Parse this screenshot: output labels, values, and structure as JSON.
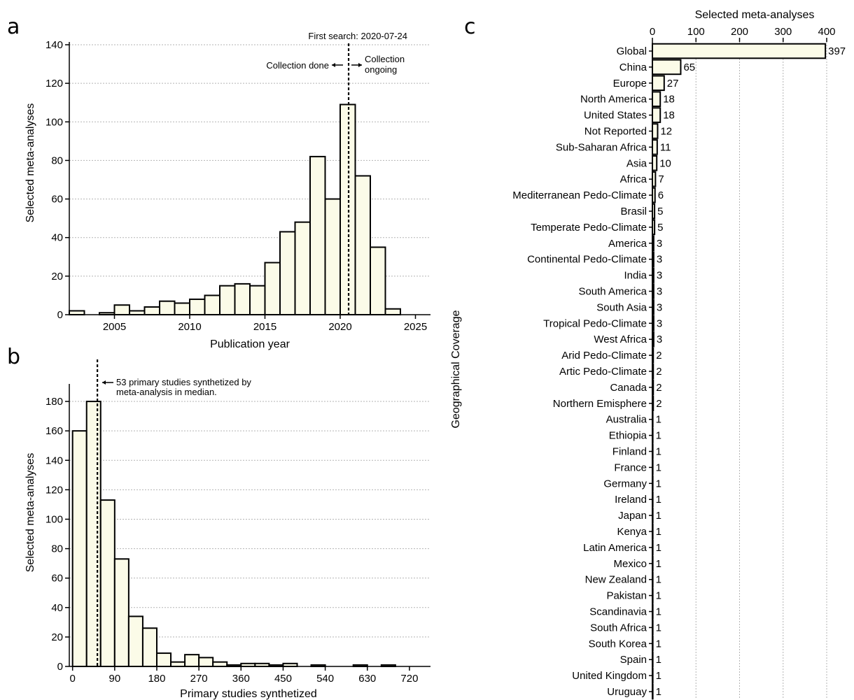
{
  "chart_data": [
    {
      "panel": "a",
      "type": "bar",
      "xlabel": "Publication year",
      "ylabel": "Selected meta-analyses",
      "xlim": [
        2002,
        2026
      ],
      "ylim": [
        0,
        140
      ],
      "xticks": [
        2005,
        2010,
        2015,
        2020,
        2025
      ],
      "yticks": [
        0,
        20,
        40,
        60,
        80,
        100,
        120,
        140
      ],
      "grid": "horizontal dotted",
      "bin_width": 1,
      "x": [
        2002.5,
        2003.5,
        2004.5,
        2005.5,
        2006.5,
        2007.5,
        2008.5,
        2009.5,
        2010.5,
        2011.5,
        2012.5,
        2013.5,
        2014.5,
        2015.5,
        2016.5,
        2017.5,
        2018.5,
        2019.5,
        2020.5,
        2021.5,
        2022.5,
        2023.5
      ],
      "values": [
        2,
        0,
        1,
        5,
        2,
        4,
        7,
        6,
        8,
        10,
        15,
        16,
        15,
        27,
        43,
        48,
        82,
        60,
        109,
        72,
        35,
        3
      ],
      "reference_line": {
        "x": 2020.56,
        "label": "First search: 2020-07-24"
      },
      "annotations": {
        "left": "Collection done",
        "right_line1": "Collection",
        "right_line2": "ongoing"
      }
    },
    {
      "panel": "b",
      "type": "bar",
      "xlabel": "Primary studies synthetized",
      "ylabel": "Selected meta-analyses",
      "xlim": [
        -7,
        765
      ],
      "ylim": [
        0,
        190
      ],
      "xticks": [
        0,
        90,
        180,
        270,
        360,
        450,
        540,
        630,
        720
      ],
      "yticks": [
        0,
        20,
        40,
        60,
        80,
        100,
        120,
        140,
        160,
        180
      ],
      "grid": "horizontal dotted",
      "bin_width": 30,
      "x": [
        15,
        45,
        75,
        105,
        135,
        165,
        195,
        225,
        255,
        285,
        315,
        345,
        375,
        405,
        435,
        465,
        495,
        525,
        555,
        585,
        615,
        645,
        675,
        705,
        735
      ],
      "values": [
        160,
        180,
        113,
        73,
        34,
        26,
        9,
        3,
        8,
        6,
        3,
        1,
        2,
        2,
        1,
        2,
        0,
        1,
        0,
        0,
        1,
        0,
        1,
        0,
        0
      ],
      "reference_line": {
        "x": 53
      },
      "annotations": {
        "line1": "53 primary studies synthetized by",
        "line2": "meta-analysis in median."
      }
    },
    {
      "panel": "c",
      "type": "bar",
      "orientation": "horizontal",
      "xlabel": "Selected meta-analyses",
      "xlabel_position": "top",
      "ylabel": "Geographical Coverage",
      "xlim": [
        0,
        400
      ],
      "xticks": [
        0,
        100,
        200,
        300,
        400
      ],
      "grid": "vertical dotted",
      "categories": [
        "Global",
        "China",
        "Europe",
        "North America",
        "United States",
        "Not Reported",
        "Sub-Saharan Africa",
        "Asia",
        "Africa",
        "Mediterranean Pedo-Climate",
        "Brasil",
        "Temperate Pedo-Climate",
        "America",
        "Continental Pedo-Climate",
        "India",
        "South America",
        "South Asia",
        "Tropical Pedo-Climate",
        "West Africa",
        "Arid Pedo-Climate",
        "Artic Pedo-Climate",
        "Canada",
        "Northern Emisphere",
        "Australia",
        "Ethiopia",
        "Finland",
        "France",
        "Germany",
        "Ireland",
        "Japan",
        "Kenya",
        "Latin America",
        "Mexico",
        "New Zealand",
        "Pakistan",
        "Scandinavia",
        "South Africa",
        "South Korea",
        "Spain",
        "United Kingdom",
        "Uruguay"
      ],
      "values": [
        397,
        65,
        27,
        18,
        18,
        12,
        11,
        10,
        7,
        6,
        5,
        5,
        3,
        3,
        3,
        3,
        3,
        3,
        3,
        2,
        2,
        2,
        2,
        1,
        1,
        1,
        1,
        1,
        1,
        1,
        1,
        1,
        1,
        1,
        1,
        1,
        1,
        1,
        1,
        1,
        1
      ],
      "data_labels": [
        "397",
        "65",
        "27",
        "18",
        "18",
        "12",
        "11",
        "10",
        "7",
        "6",
        "5",
        "5",
        "3",
        "3",
        "3",
        "3",
        "3",
        "3",
        "3",
        "2",
        "2",
        "2",
        "2",
        "1",
        "1",
        "1",
        "1",
        "1",
        "1",
        "1",
        "1",
        "1",
        "1",
        "1",
        "1",
        "1",
        "1",
        "1",
        "1",
        "1",
        "1"
      ]
    }
  ],
  "panel_letters": {
    "a": "a",
    "b": "b",
    "c": "c"
  }
}
